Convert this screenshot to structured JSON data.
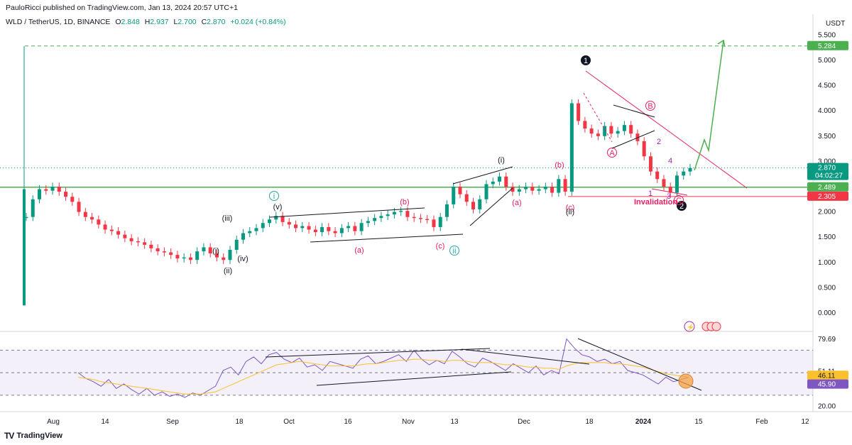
{
  "header": {
    "publisher_line": "PauloRicci published on TradingView.com, Jan 13, 2024 20:57 UTC+1",
    "symbol": "WLD / TetherUS, 1D, BINANCE",
    "open_label": "O",
    "open": "2.848",
    "high_label": "H",
    "high": "2.937",
    "low_label": "L",
    "low": "2.700",
    "close_label": "C",
    "close": "2.870",
    "change": "+0.024 (+0.84%)"
  },
  "currency": "USDT",
  "footer_brand": "TradingView",
  "colors": {
    "up": "#089981",
    "down": "#f23645",
    "support": "#4caf50",
    "trend": "#e91e63",
    "rsi": "#7e57c2",
    "rsi_ma": "#fbc02d",
    "annotation": "#e91e63"
  },
  "chart_data": [
    {
      "type": "candlestick",
      "title": "WLD / TetherUS, 1D, BINANCE",
      "ylim": [
        -0.1,
        5.6
      ],
      "y_ticks": [
        "5.500",
        "5.000",
        "4.500",
        "4.000",
        "3.500",
        "3.000",
        "2.500",
        "2.000",
        "1.500",
        "1.000",
        "0.500",
        "0.000"
      ],
      "x_ticks": [
        "Aug",
        "14",
        "Sep",
        "18",
        "Oct",
        "16",
        "Nov",
        "13",
        "Dec",
        "18",
        "2024",
        "15",
        "Feb",
        "12"
      ],
      "price_badges": [
        {
          "value": "5.284",
          "color": "#4caf50"
        },
        {
          "value": "2.870",
          "subtext": "04:02:27",
          "color": "#089981"
        },
        {
          "value": "2.489",
          "color": "#4caf50"
        },
        {
          "value": "2.305",
          "color": "#f23645"
        }
      ],
      "horizontal_levels": [
        {
          "value": 5.284,
          "style": "dashed",
          "color": "#4caf50"
        },
        {
          "value": 2.489,
          "style": "solid",
          "color": "#4caf50"
        },
        {
          "value": 2.305,
          "style": "solid",
          "color": "#f23645"
        },
        {
          "value": 2.87,
          "style": "dotted",
          "color": "#089981"
        }
      ],
      "price_path": [
        1.9,
        2.25,
        2.45,
        2.42,
        2.5,
        2.4,
        2.3,
        2.2,
        2.0,
        1.9,
        1.85,
        1.75,
        1.65,
        1.62,
        1.55,
        1.48,
        1.42,
        1.4,
        1.35,
        1.28,
        1.22,
        1.2,
        1.15,
        1.08,
        1.1,
        1.05,
        1.22,
        1.3,
        1.18,
        1.1,
        1.05,
        1.25,
        1.45,
        1.58,
        1.62,
        1.68,
        1.78,
        1.85,
        1.92,
        1.8,
        1.75,
        1.68,
        1.72,
        1.65,
        1.6,
        1.7,
        1.62,
        1.58,
        1.68,
        1.72,
        1.62,
        1.78,
        1.82,
        1.88,
        1.92,
        1.95,
        2.0,
        2.02,
        1.9,
        1.88,
        1.86,
        1.85,
        1.7,
        1.9,
        2.15,
        2.5,
        2.35,
        2.2,
        2.05,
        2.25,
        2.55,
        2.6,
        2.7,
        2.5,
        2.4,
        2.45,
        2.5,
        2.42,
        2.45,
        2.5,
        2.38,
        2.65,
        2.4,
        4.15,
        3.8,
        3.65,
        3.55,
        3.5,
        3.7,
        3.55,
        3.6,
        3.72,
        3.55,
        3.4,
        3.1,
        2.8,
        2.65,
        2.5,
        2.38,
        2.72,
        2.8,
        2.87
      ],
      "annotations": [
        {
          "text": "(i)",
          "color": "#131722"
        },
        {
          "text": "(ii)",
          "color": "#131722"
        },
        {
          "text": "(iii)",
          "color": "#131722"
        },
        {
          "text": "(iv)",
          "color": "#131722"
        },
        {
          "text": "(v)",
          "color": "#131722"
        },
        {
          "text": "i",
          "color": "#26a69a",
          "circled": true
        },
        {
          "text": "(a)",
          "color": "#e91e63"
        },
        {
          "text": "(b)",
          "color": "#e91e63"
        },
        {
          "text": "(c)",
          "color": "#e91e63"
        },
        {
          "text": "ii",
          "color": "#26a69a",
          "circled": true
        },
        {
          "text": "(i)",
          "color": "#131722"
        },
        {
          "text": "(a)",
          "color": "#e91e63"
        },
        {
          "text": "(b)",
          "color": "#e91e63"
        },
        {
          "text": "(c)",
          "color": "#e91e63"
        },
        {
          "text": "(ii)",
          "color": "#131722"
        },
        {
          "text": "1",
          "color": "#131722",
          "circled": true
        },
        {
          "text": "2",
          "color": "#131722",
          "circled": true
        },
        {
          "text": "A",
          "color": "#e91e63",
          "circled": true
        },
        {
          "text": "B",
          "color": "#e91e63",
          "circled": true
        },
        {
          "text": "C",
          "color": "#e91e63",
          "circled": true
        },
        {
          "text": "1",
          "color": "#9c27b0"
        },
        {
          "text": "2",
          "color": "#9c27b0"
        },
        {
          "text": "3",
          "color": "#9c27b0"
        },
        {
          "text": "4",
          "color": "#9c27b0"
        },
        {
          "text": "Invalidation",
          "color": "#e91e63"
        }
      ]
    },
    {
      "type": "line",
      "title": "",
      "ylim": [
        15,
        85
      ],
      "y_ticks": [
        "79.69",
        "51.11",
        "40.00",
        "20.00"
      ],
      "levels": [
        70,
        50,
        30
      ],
      "badges": [
        {
          "value": "46.11",
          "color": "#fbc02d"
        },
        {
          "value": "45.90",
          "color": "#7e57c2"
        }
      ],
      "series": [
        {
          "color": "#7e57c2",
          "values": [
            50,
            45,
            42,
            38,
            44,
            36,
            40,
            35,
            31,
            36,
            30,
            33,
            29,
            31,
            28,
            32,
            30,
            34,
            38,
            52,
            55,
            48,
            60,
            64,
            58,
            66,
            68,
            62,
            59,
            63,
            55,
            57,
            52,
            60,
            58,
            56,
            54,
            62,
            65,
            58,
            60,
            63,
            66,
            60,
            70,
            62,
            57,
            61,
            58,
            69,
            64,
            58,
            55,
            63,
            60,
            56,
            52,
            58,
            54,
            50,
            56,
            48,
            52,
            49,
            80,
            72,
            66,
            64,
            60,
            62,
            58,
            60,
            52,
            50,
            48,
            44,
            40,
            46,
            42,
            44,
            46
          ]
        },
        {
          "color": "#fbc02d",
          "values": [
            46,
            45,
            44,
            42,
            41,
            40,
            39,
            38,
            37,
            36,
            35,
            34,
            33,
            32,
            31,
            31,
            31,
            32,
            33,
            36,
            39,
            42,
            45,
            48,
            51,
            54,
            57,
            58,
            59,
            60,
            59,
            58,
            57,
            56,
            56,
            56,
            56,
            57,
            58,
            58,
            59,
            60,
            61,
            61,
            62,
            62,
            61,
            61,
            60,
            61,
            61,
            60,
            59,
            59,
            59,
            58,
            57,
            57,
            56,
            55,
            55,
            54,
            54,
            53,
            56,
            58,
            59,
            59,
            59,
            59,
            58,
            58,
            57,
            56,
            55,
            53,
            51,
            49,
            48,
            47,
            46
          ]
        }
      ]
    }
  ]
}
